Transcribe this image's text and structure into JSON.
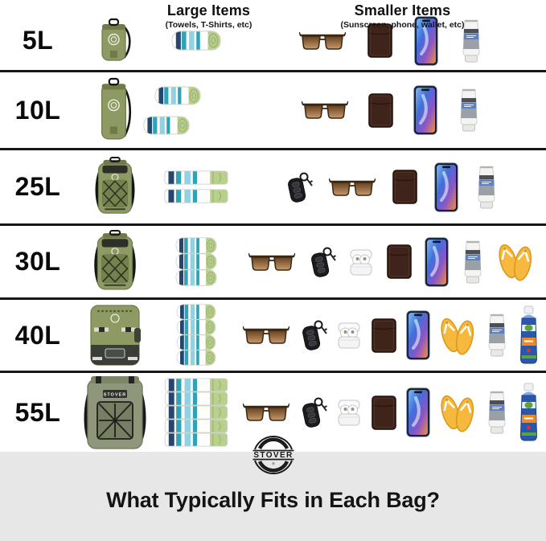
{
  "header": {
    "large_items_title": "Large Items",
    "large_items_subtitle": "(Towels, T-Shirts, etc)",
    "smaller_items_title": "Smaller Items",
    "smaller_items_subtitle": "(Sunscreen, phone, wallet, etc)"
  },
  "rows": [
    {
      "size": "5L",
      "bag": "dry-bag-small",
      "bag_text": "",
      "towel_style": "roll",
      "towel_count": 1,
      "items": [
        "sunglasses",
        "wallet",
        "phone",
        "sunscreen-tube"
      ]
    },
    {
      "size": "10L",
      "bag": "dry-bag-tall",
      "bag_text": "",
      "towel_style": "roll-pair",
      "towel_count": 2,
      "items": [
        "sunglasses",
        "wallet",
        "phone",
        "sunscreen-tube"
      ]
    },
    {
      "size": "25L",
      "bag": "backpack-small",
      "bag_text": "",
      "towel_style": "folded",
      "towel_count": 2,
      "items": [
        "key-fob",
        "sunglasses",
        "wallet",
        "phone",
        "sunscreen-tube"
      ]
    },
    {
      "size": "30L",
      "bag": "backpack-medium",
      "bag_text": "",
      "towel_style": "roll-stack",
      "towel_count": 3,
      "items": [
        "sunglasses",
        "key-fob",
        "airpods",
        "wallet",
        "phone",
        "sunscreen-tube",
        "flip-flops"
      ]
    },
    {
      "size": "40L",
      "bag": "backpack-large",
      "bag_text": "",
      "towel_style": "roll-stack",
      "towel_count": 4,
      "items": [
        "sunglasses",
        "key-fob",
        "airpods",
        "wallet",
        "phone",
        "flip-flops",
        "sunscreen-tube",
        "spray-can"
      ]
    },
    {
      "size": "55L",
      "bag": "backpack-xl",
      "bag_text": "STOVER",
      "towel_style": "folded",
      "towel_count": 5,
      "items": [
        "sunglasses",
        "key-fob",
        "airpods",
        "wallet",
        "phone",
        "flip-flops",
        "sunscreen-tube",
        "spray-can"
      ]
    }
  ],
  "footer": {
    "brand": "STOVER",
    "title": "What Typically Fits in Each Bag?"
  },
  "colors": {
    "separator": "#161616",
    "footer_bg": "#e7e7e7",
    "bag_green": "#8e9a64",
    "bag_green_dark": "#6f7a48",
    "bag_panel": "#76824d",
    "bag_xl_green": "#8f977b",
    "bag_black": "#3b3d39",
    "towel_navy": "#27456e",
    "towel_teal": "#2fa3b5",
    "towel_blue": "#90d2e2",
    "towel_green": "#b8cf8e",
    "towel_white": "#fdfdfd",
    "wallet_brown": "#3e241a",
    "lens_brown_dark": "#63401f",
    "lens_brown_light": "#c9996a",
    "frame_brown": "#3a2812",
    "flipflop_yellow": "#f6b93d",
    "flipflop_edge": "#d89a1f",
    "spray_blue": "#2a57ae",
    "spray_light_blue": "#7fa9e2",
    "spray_orange": "#f08a1e",
    "spray_green": "#5da23c",
    "tube_gray": "#9aa0a6",
    "tube_band_dark": "#4e4f53",
    "tube_band_blue": "#5d7fc4",
    "phone_frame": "#0e1726",
    "phone_blue": "#3f6fd8",
    "phone_sky": "#7fb7f2",
    "phone_purple": "#8a55c8",
    "phone_orange": "#ef8f3f",
    "fob_black": "#1c1c1e",
    "airpods_white": "#f4f4f4"
  }
}
